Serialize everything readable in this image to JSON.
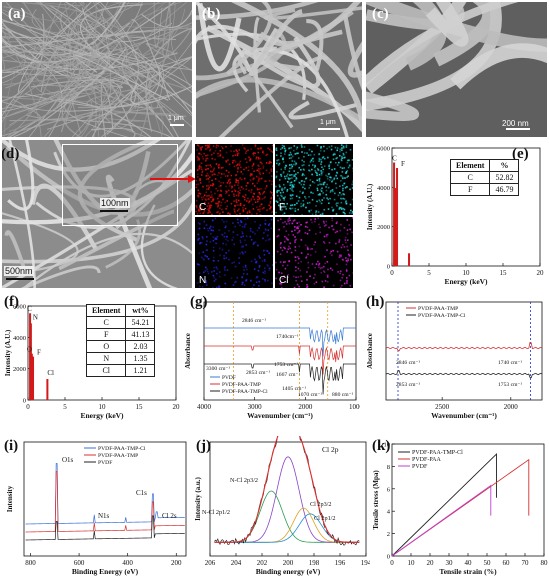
{
  "panels": {
    "a": {
      "label": "(a)",
      "scale": "1 μm"
    },
    "b": {
      "label": "(b)",
      "scale": "1 μm"
    },
    "c": {
      "label": "(c)",
      "scale": "200 nm"
    },
    "d": {
      "label": "(d)",
      "scale_main": "500nm",
      "scale_inset": "100nm",
      "maps": [
        {
          "el": "C",
          "color": "#e01010"
        },
        {
          "el": "F",
          "color": "#20d0d0"
        },
        {
          "el": "N",
          "color": "#2828e0"
        },
        {
          "el": "Cl",
          "color": "#d020d0"
        }
      ]
    },
    "e": {
      "label": "(e)",
      "ylabel": "Intensity (A.U.)",
      "xlabel": "Energy (keV)",
      "yticks": [
        "0",
        "2000",
        "4000",
        "6000"
      ],
      "xticks": [
        "0",
        "5",
        "10",
        "15",
        "20"
      ],
      "peak_labels": [
        "C",
        "F"
      ],
      "table": {
        "headers": [
          "Element",
          "%"
        ],
        "rows": [
          [
            "C",
            "52.82"
          ],
          [
            "F",
            "46.79"
          ]
        ]
      }
    },
    "f": {
      "label": "(f)",
      "ylabel": "Intensity (A.U.)",
      "xlabel": "Energy (keV)",
      "yticks": [
        "0",
        "2000",
        "4000",
        "6000"
      ],
      "xticks": [
        "0",
        "5",
        "10",
        "15",
        "20"
      ],
      "peak_labels": [
        "C",
        "N",
        "O",
        "F",
        "Cl"
      ],
      "table": {
        "headers": [
          "Element",
          "wt%"
        ],
        "rows": [
          [
            "C",
            "54.21"
          ],
          [
            "F",
            "41.13"
          ],
          [
            "O",
            "2.03"
          ],
          [
            "N",
            "1.35"
          ],
          [
            "Cl",
            "1.21"
          ]
        ]
      }
    },
    "g": {
      "label": "(g)",
      "ylabel": "Absorbance",
      "xlabel": "Wavenumber (cm⁻¹)",
      "xticks": [
        "4000",
        "3000",
        "2000",
        "1000"
      ],
      "annotations": [
        "2846 cm⁻¹",
        "1740cm⁻¹",
        "3300 cm⁻¹",
        "2853 cm⁻¹",
        "1753 cm⁻¹",
        "1667 cm⁻¹",
        "1405 cm⁻¹",
        "1070 cm⁻¹",
        "880 cm⁻¹"
      ],
      "legend": [
        "PVDF",
        "PVDF-PAA-TMP",
        "PVDF-PAA-TMP-Cl"
      ],
      "colors": [
        "#3a7bd5",
        "#d63030",
        "#222222"
      ]
    },
    "h": {
      "label": "(h)",
      "ylabel": "Absorbance",
      "xlabel": "Wavenumber (cm⁻¹)",
      "xticks": [
        "2500",
        "2000"
      ],
      "annotations": [
        "2846 cm⁻¹",
        "1740 cm⁻¹",
        "2853 cm⁻¹",
        "1753 cm⁻¹"
      ],
      "legend": [
        "PVDF-PAA-TMP",
        "PVDF-PAA-TMP-Cl"
      ],
      "colors": [
        "#d63030",
        "#222222"
      ]
    },
    "i": {
      "label": "(i)",
      "ylabel": "Intensity",
      "xlabel": "Binding Energy (eV)",
      "xticks": [
        "800",
        "600",
        "400",
        "200"
      ],
      "annotations": [
        "O1s",
        "C1s",
        "N1s",
        "Cl 2s"
      ],
      "legend": [
        "PVDF-PAA-TMP-Cl",
        "PVDF-PAA-TMP",
        "PVDF"
      ],
      "colors": [
        "#3a6fd8",
        "#d63030",
        "#222222"
      ]
    },
    "j": {
      "label": "(j)",
      "ylabel": "Intensity (a.u.)",
      "xlabel": "Binding energy (eV)",
      "xticks": [
        "206",
        "204",
        "202",
        "200",
        "198",
        "196",
        "194"
      ],
      "title": "Cl 2p",
      "annotations": [
        "N-Cl 2p3/2",
        "N-Cl 2p1/2",
        "Cl 2p3/2",
        "Cl 2p1/2"
      ]
    },
    "k": {
      "label": "(k)",
      "ylabel": "Tensile stress (Mpa)",
      "xlabel": "Tensile strain (%)",
      "xticks": [
        "0",
        "10",
        "20",
        "30",
        "40",
        "50",
        "60",
        "70",
        "80"
      ],
      "yticks": [
        "0",
        "2",
        "4",
        "6",
        "8",
        "10"
      ],
      "legend": [
        "PVDF-PAA-TMP-Cl",
        "PVDF-PAA",
        "PVDF"
      ],
      "colors": [
        "#222222",
        "#d63030",
        "#c040d0"
      ]
    }
  }
}
